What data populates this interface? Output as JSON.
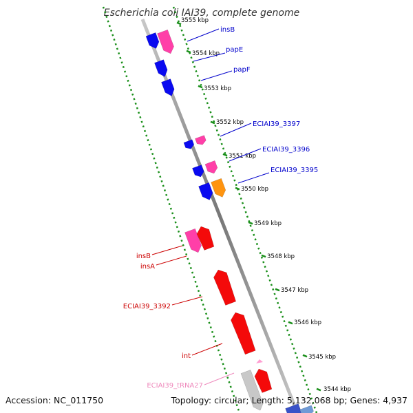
{
  "title": "Escherichia coli IAI39, complete genome",
  "footer": {
    "accession": "Accession: NC_011750",
    "summary": "Topology: circular; Length: 5,132,068 bp; Genes: 4,937"
  },
  "kbp_ticks": [
    {
      "label": "3555 kbp",
      "kbp": 3555
    },
    {
      "label": "3554 kbp",
      "kbp": 3554
    },
    {
      "label": "3553 kbp",
      "kbp": 3553
    },
    {
      "label": "3552 kbp",
      "kbp": 3552
    },
    {
      "label": "3551 kbp",
      "kbp": 3551
    },
    {
      "label": "3550 kbp",
      "kbp": 3550
    },
    {
      "label": "3549 kbp",
      "kbp": 3549
    },
    {
      "label": "3548 kbp",
      "kbp": 3548
    },
    {
      "label": "3547 kbp",
      "kbp": 3547
    },
    {
      "label": "3546 kbp",
      "kbp": 3546
    },
    {
      "label": "3545 kbp",
      "kbp": 3545
    },
    {
      "label": "3544 kbp",
      "kbp": 3544
    }
  ],
  "gene_labels": [
    {
      "name": "insB",
      "color": "#0000cc"
    },
    {
      "name": "papE",
      "color": "#0000cc"
    },
    {
      "name": "papF",
      "color": "#0000cc"
    },
    {
      "name": "ECIAI39_3397",
      "color": "#0000cc"
    },
    {
      "name": "ECIAI39_3396",
      "color": "#0000cc"
    },
    {
      "name": "ECIAI39_3395",
      "color": "#0000cc"
    },
    {
      "name": "insB",
      "color": "#cc0000"
    },
    {
      "name": "insA",
      "color": "#cc0000"
    },
    {
      "name": "ECIAI39_3392",
      "color": "#cc0000"
    },
    {
      "name": "int",
      "color": "#cc0000"
    },
    {
      "name": "ECIAI39_tRNA27",
      "color": "#ee88bb"
    }
  ],
  "colors": {
    "blue_gene": "#0a0af0",
    "pink_gene": "#ff3fa8",
    "red_gene": "#f40a0a",
    "orange_gene": "#ff9410",
    "gray_gene": "#c8c8c8",
    "trna": "#ff9ed2",
    "tick_green": "#1a8f1a",
    "backbone": "#777777"
  },
  "icons": [
    "genome-backbone",
    "gene-arrow"
  ]
}
